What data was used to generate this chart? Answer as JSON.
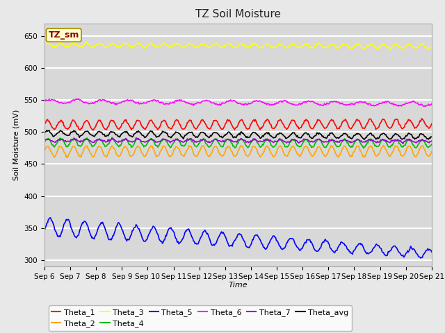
{
  "title": "TZ Soil Moisture",
  "xlabel": "Time",
  "ylabel": "Soil Moisture (mV)",
  "ylim": [
    290,
    670
  ],
  "xtick_labels": [
    "Sep 6",
    "Sep 7",
    "Sep 8",
    "Sep 9",
    "Sep 10",
    "Sep 11",
    "Sep 12",
    "Sep 13",
    "Sep 14",
    "Sep 15",
    "Sep 16",
    "Sep 17",
    "Sep 18",
    "Sep 19",
    "Sep 20",
    "Sep 21"
  ],
  "legend_label": "TZ_sm",
  "series_order": [
    "Theta_1",
    "Theta_2",
    "Theta_3",
    "Theta_4",
    "Theta_5",
    "Theta_6",
    "Theta_7",
    "Theta_avg"
  ],
  "series": {
    "Theta_1": {
      "color": "#ff0000",
      "base": 511,
      "amp": 7,
      "freq": 2.0,
      "trend": 2
    },
    "Theta_2": {
      "color": "#ffa500",
      "base": 470,
      "amp": 8,
      "freq": 2.0,
      "trend": 0
    },
    "Theta_3": {
      "color": "#ffff00",
      "base": 636,
      "amp": 3,
      "freq": 2.0,
      "trend": -2
    },
    "Theta_4": {
      "color": "#00bb00",
      "base": 484,
      "amp": 6,
      "freq": 2.0,
      "trend": -2
    },
    "Theta_5": {
      "color": "#0000ff",
      "base": 352,
      "amp": 10,
      "freq": 2.0,
      "trend": -3.5
    },
    "Theta_6": {
      "color": "#ff00ff",
      "base": 548,
      "amp": 3,
      "freq": 1.0,
      "trend": -4
    },
    "Theta_7": {
      "color": "#9900cc",
      "base": 487,
      "amp": 2,
      "freq": 2.0,
      "trend": -1
    },
    "Theta_avg": {
      "color": "#000000",
      "base": 498,
      "amp": 4,
      "freq": 2.0,
      "trend": -5
    }
  },
  "background_color": "#e8e8e8",
  "plot_bg_color": "#d8d8d8",
  "grid_color": "#ffffff",
  "title_fontsize": 11,
  "axis_fontsize": 8,
  "tick_fontsize": 7.5,
  "legend_fontsize": 8,
  "yticks": [
    300,
    350,
    400,
    450,
    500,
    550,
    600,
    650
  ]
}
